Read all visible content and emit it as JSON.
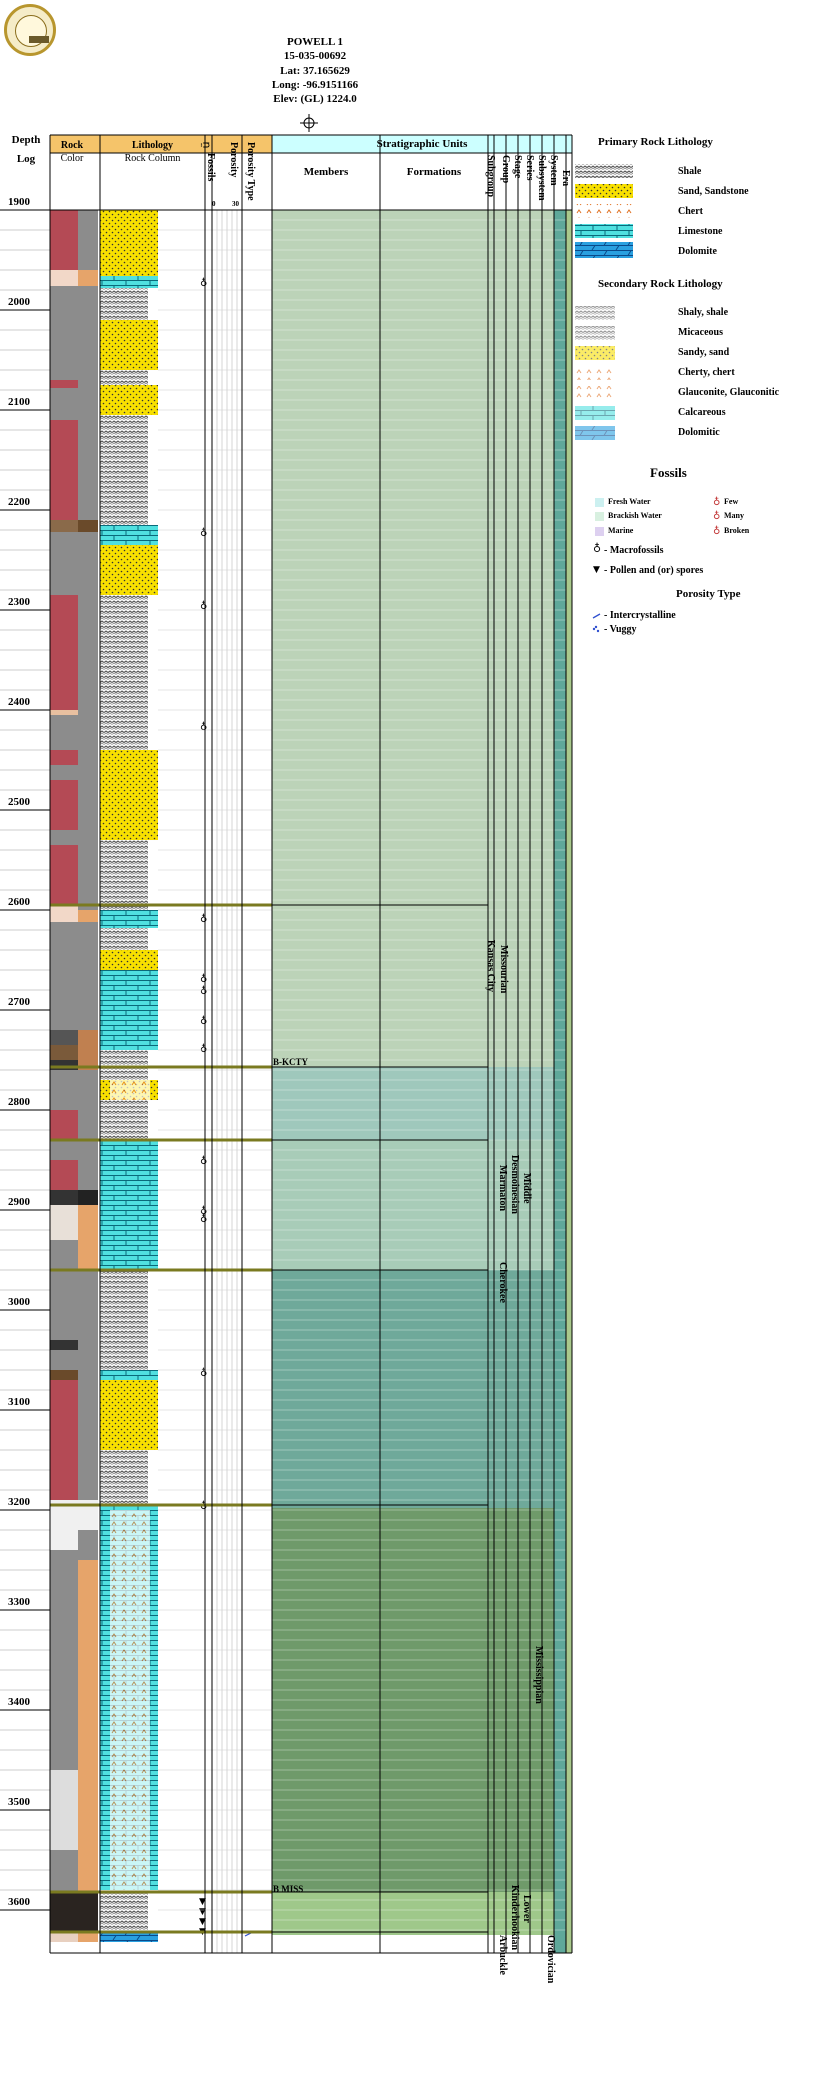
{
  "header": {
    "well_name": "POWELL 1",
    "api": "15-035-00692",
    "lat": "Lat: 37.165629",
    "long": "Long: -96.9151166",
    "elev": "Elev: (GL) 1224.0"
  },
  "columns": {
    "depth": "Depth",
    "log": "Log",
    "rock": "Rock",
    "color": "Color",
    "lithology": "Lithology",
    "rock_column": "Rock Column",
    "fossils": "Fossils",
    "porosity": "Porosity",
    "porosity_scale_min": "0",
    "porosity_scale_max": "30",
    "porosity_type": "Porosity Type",
    "strat_units": "Stratigraphic Units",
    "members": "Members",
    "formations": "Formations",
    "subgroup": "Subgroup",
    "group": "Group",
    "stage": "Stage",
    "series": "Series",
    "subsystem": "Subsystem",
    "system": "System",
    "era": "Era"
  },
  "depth_labels": [
    "1900",
    "2000",
    "2100",
    "2200",
    "2300",
    "2400",
    "2500",
    "2600",
    "2700",
    "2800",
    "2900",
    "3000",
    "3100",
    "3200",
    "3300",
    "3400",
    "3500",
    "3600"
  ],
  "tops": [
    {
      "label": "B-KCTY"
    },
    {
      "label": "B MISS"
    }
  ],
  "strat_labels": {
    "missourian": "Missourian",
    "kansas_city": "Kansas City",
    "middle": "Middle",
    "desmoinesian": "Desmoinesian",
    "marmaton": "Marmaton",
    "cherokee": "Cherokee",
    "mississippian": "Mississippian",
    "lower": "Lower",
    "kinderhookian": "Kinderhookian",
    "arbuckle": "Arbuckle",
    "ordovician": "Ordovician"
  },
  "legend": {
    "primary_title": "Primary Rock Lithology",
    "primary": [
      "Shale",
      "Sand, Sandstone",
      "Chert",
      "Limestone",
      "Dolomite"
    ],
    "secondary_title": "Secondary Rock Lithology",
    "secondary": [
      "Shaly, shale",
      "Micaceous",
      "Sandy, sand",
      "Cherty, chert",
      "Glauconite, Glauconitic",
      "Calcareous",
      "Dolomitic"
    ],
    "fossils_title": "Fossils",
    "fresh_water": "Fresh Water",
    "brackish_water": "Brackish Water",
    "marine": "Marine",
    "few": "Few",
    "many": "Many",
    "broken": "Broken",
    "macrofossils": "- Macrofossils",
    "pollen": "- Pollen and (or) spores",
    "porosity_title": "Porosity Type",
    "intercrystalline": "- Intercrystalline",
    "vuggy": "- Vuggy"
  },
  "colors": {
    "header_orange": "#f5c46a",
    "header_cyan": "#ccffff",
    "shale_red": "#b44a55",
    "gray": "#8c8c8c",
    "tan": "#e6a46a",
    "sand_yellow": "#f8e000",
    "limestone_cyan": "#50e0e0",
    "dolomite_blue": "#2aa0e0",
    "strat_green_light": "#bcd3b8",
    "strat_teal_light": "#9fc8bc",
    "strat_teal": "#6fa99a",
    "strat_green_dark": "#6f9a6a",
    "strat_green_bottom": "#9fc88a",
    "era_green": "#a9c98c",
    "system_teal": "#5fa89a"
  }
}
